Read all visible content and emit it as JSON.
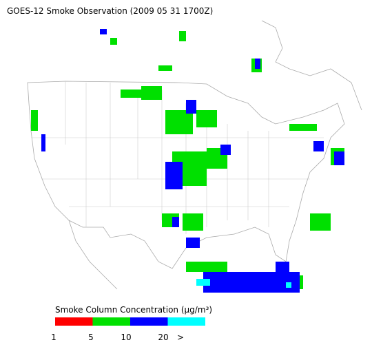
{
  "title": "GOES-12 Smoke Observation (2009 05 31  1700Z)",
  "legend": {
    "title": "Smoke Column Concentration (μg/m³)",
    "colors": [
      "#ff0000",
      "#00e000",
      "#0000ff",
      "#00ffff"
    ],
    "labels": [
      "1",
      "5",
      "10",
      "20",
      ">"
    ]
  }
}
